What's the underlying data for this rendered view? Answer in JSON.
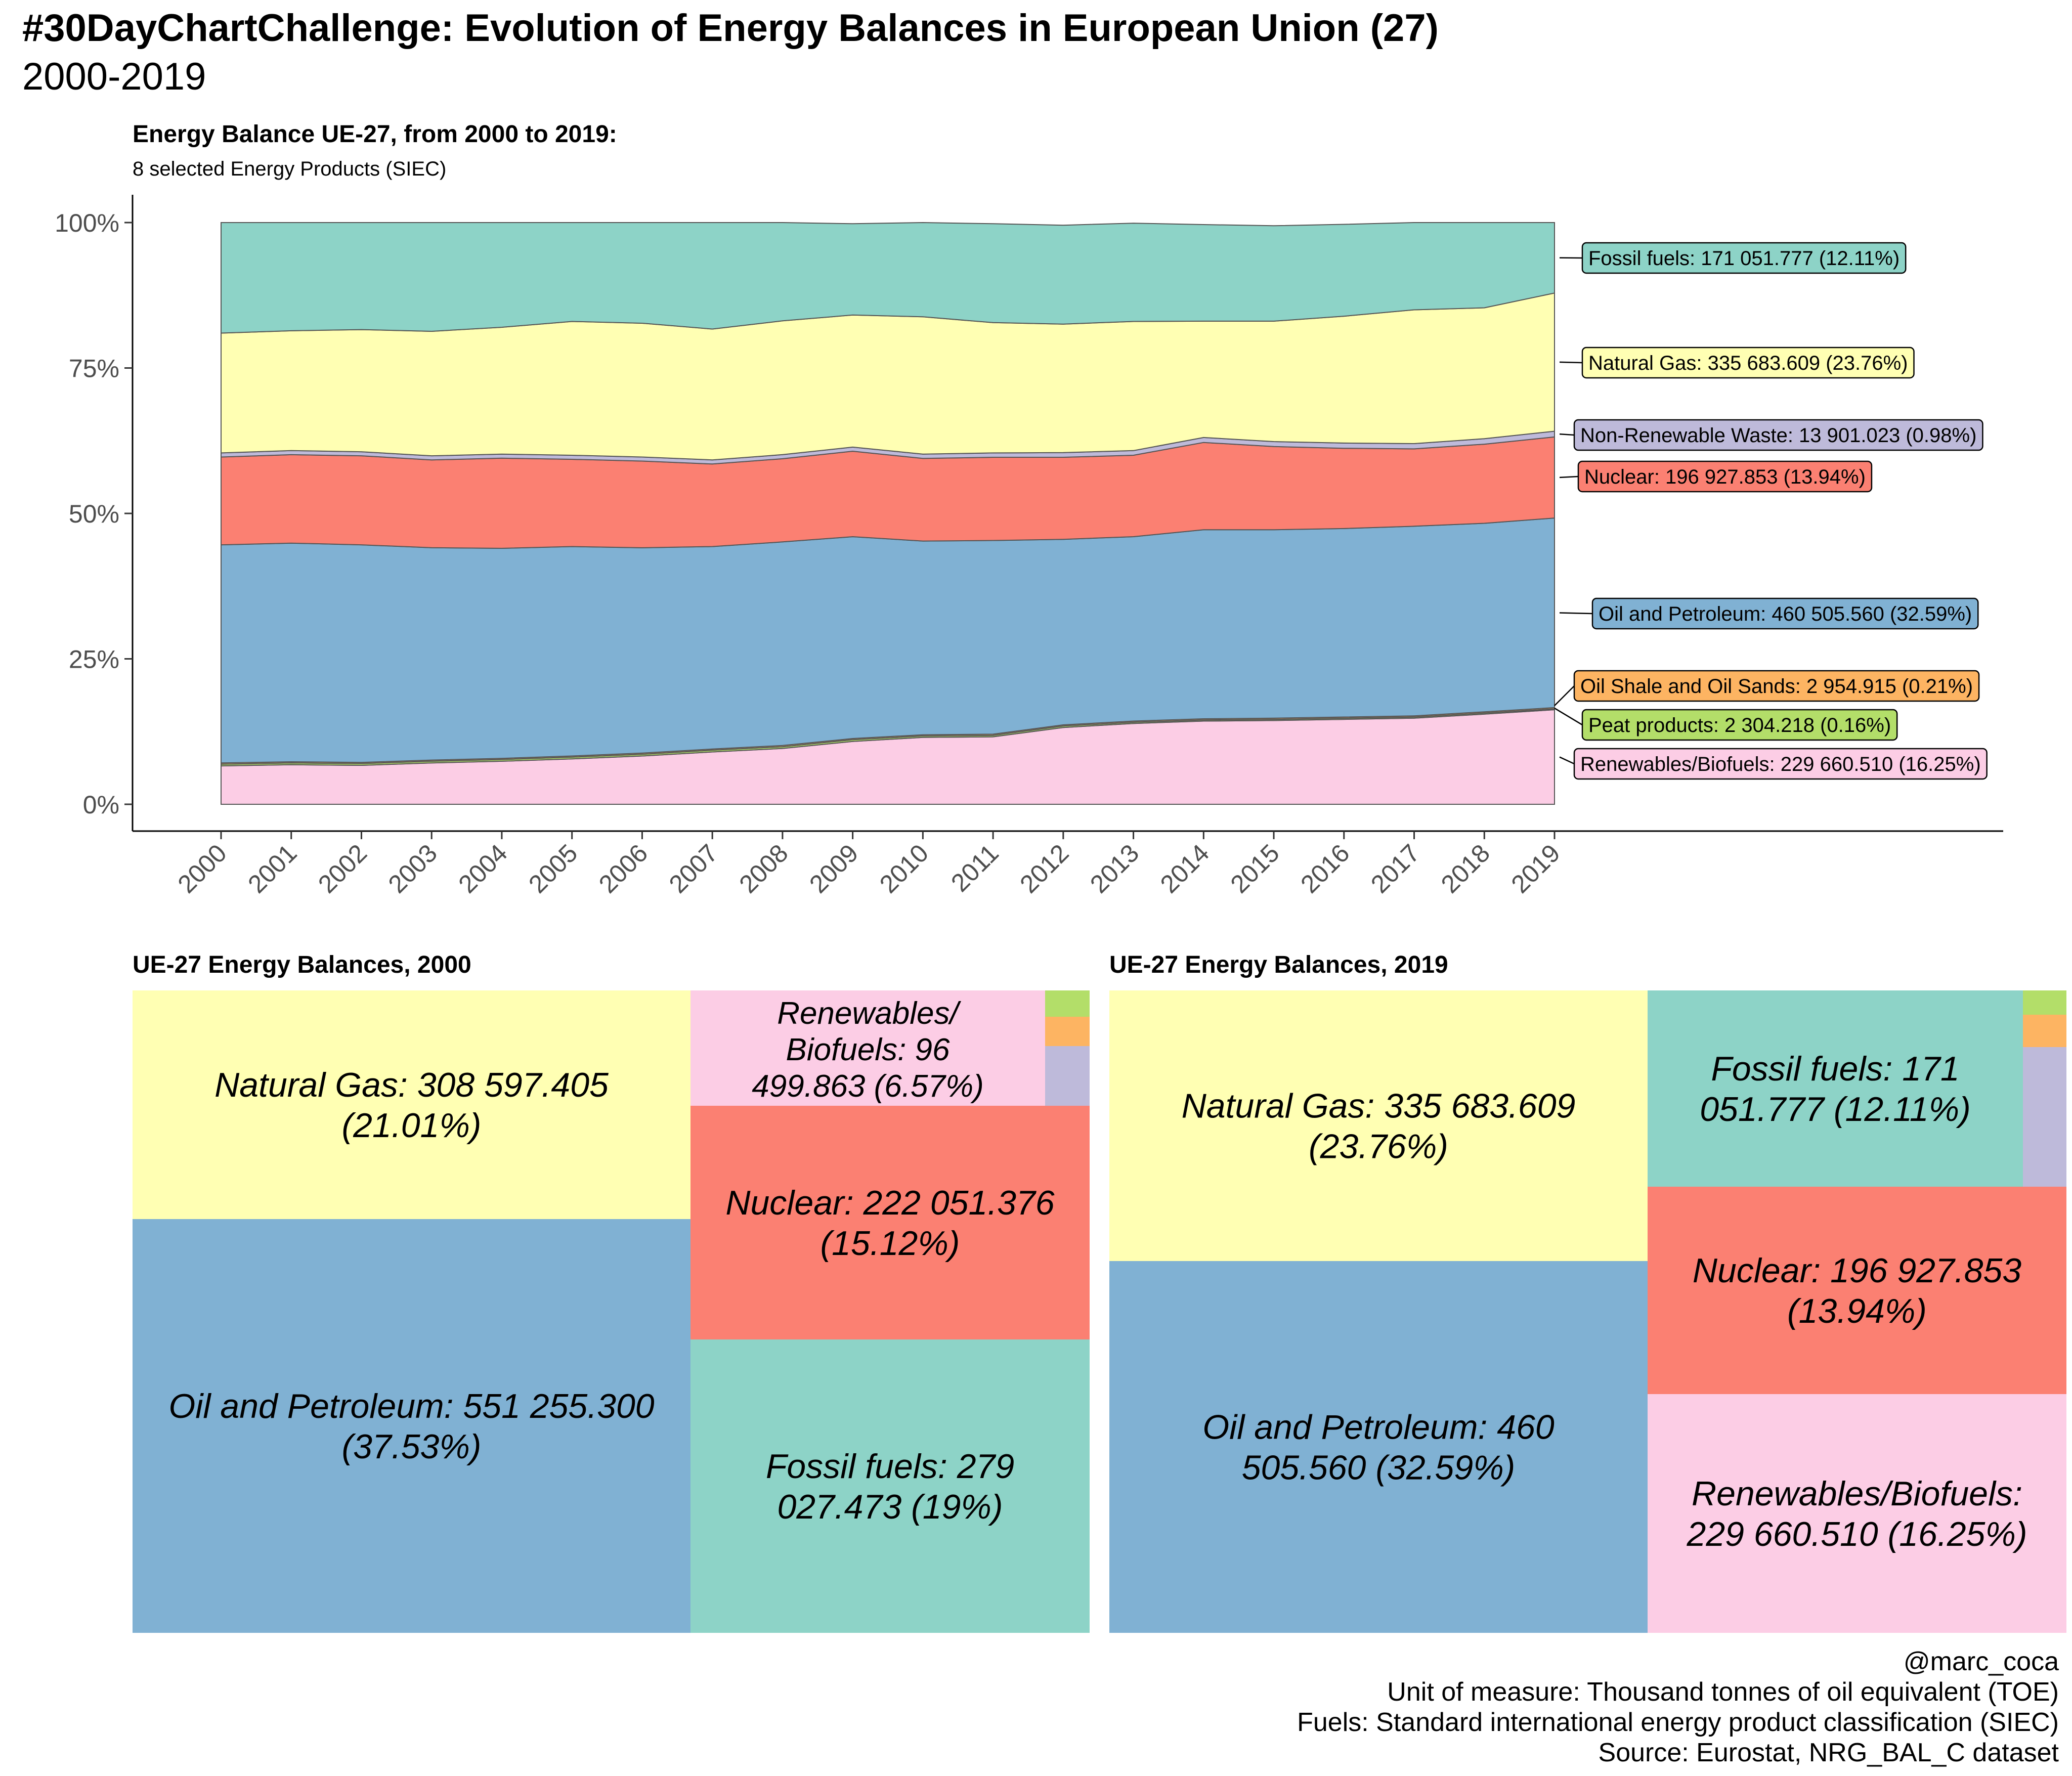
{
  "header": {
    "title": "#30DayChartChallenge: Evolution of Energy Balances in European Union (27)",
    "subtitle": "2000-2019"
  },
  "area_panel": {
    "title": "Energy Balance UE-27, from 2000 to 2019:",
    "subtitle": "8 selected Energy Products (SIEC)"
  },
  "treemap_2000": {
    "title": "UE-27 Energy Balances, 2000"
  },
  "treemap_2019": {
    "title": "UE-27 Energy Balances, 2019"
  },
  "caption": {
    "line1": "@marc_coca",
    "line2": "Unit of measure: Thousand tonnes of oil equivalent (TOE)",
    "line3": "Fuels: Standard international energy product classification (SIEC)",
    "line4": "Source: Eurostat, NRG_BAL_C dataset"
  },
  "colors": {
    "fossil": "#8DD3C7",
    "gas": "#FFFFB3",
    "waste": "#BEBADA",
    "nuclear": "#FB8072",
    "oil": "#80B1D3",
    "shale": "#FDB462",
    "peat": "#B3DE69",
    "renew": "#FCCDE5"
  },
  "chart_data": [
    {
      "type": "area",
      "stacked": "percent",
      "title": "Energy Balance UE-27, from 2000 to 2019:",
      "subtitle": "8 selected Energy Products (SIEC)",
      "x": [
        2000,
        2001,
        2002,
        2003,
        2004,
        2005,
        2006,
        2007,
        2008,
        2009,
        2010,
        2011,
        2012,
        2013,
        2014,
        2015,
        2016,
        2017,
        2018,
        2019
      ],
      "y_ticks": [
        "0%",
        "25%",
        "50%",
        "75%",
        "100%"
      ],
      "ylim": [
        0,
        100
      ],
      "series": [
        {
          "key": "renew",
          "color": "#FCCDE5",
          "values": [
            6.6,
            6.8,
            6.7,
            7.1,
            7.4,
            7.8,
            8.3,
            9.0,
            9.6,
            10.8,
            11.5,
            11.6,
            13.2,
            13.9,
            14.3,
            14.4,
            14.6,
            14.8,
            15.5,
            16.25
          ]
        },
        {
          "key": "peat",
          "color": "#B3DE69",
          "values": [
            0.3,
            0.3,
            0.3,
            0.3,
            0.3,
            0.3,
            0.3,
            0.3,
            0.3,
            0.3,
            0.25,
            0.25,
            0.25,
            0.2,
            0.2,
            0.2,
            0.2,
            0.2,
            0.2,
            0.16
          ]
        },
        {
          "key": "shale",
          "color": "#FDB462",
          "values": [
            0.2,
            0.2,
            0.2,
            0.2,
            0.2,
            0.2,
            0.2,
            0.2,
            0.2,
            0.2,
            0.2,
            0.2,
            0.2,
            0.2,
            0.2,
            0.2,
            0.2,
            0.2,
            0.2,
            0.21
          ]
        },
        {
          "key": "oil",
          "color": "#80B1D3",
          "values": [
            37.5,
            37.6,
            37.4,
            36.5,
            36.1,
            36.0,
            35.3,
            34.8,
            35.0,
            34.7,
            33.3,
            33.3,
            31.9,
            31.7,
            32.5,
            32.4,
            32.4,
            32.6,
            32.4,
            32.59
          ]
        },
        {
          "key": "nuclear",
          "color": "#FB8072",
          "values": [
            15.1,
            15.2,
            15.3,
            15.1,
            15.5,
            15.0,
            14.9,
            14.2,
            14.3,
            14.7,
            14.2,
            14.3,
            14.1,
            14.0,
            15.0,
            14.3,
            13.8,
            13.3,
            13.6,
            13.94
          ]
        },
        {
          "key": "waste",
          "color": "#BEBADA",
          "values": [
            0.7,
            0.7,
            0.7,
            0.7,
            0.7,
            0.7,
            0.7,
            0.7,
            0.7,
            0.7,
            0.75,
            0.75,
            0.8,
            0.8,
            0.85,
            0.85,
            0.9,
            0.9,
            0.95,
            0.98
          ]
        },
        {
          "key": "gas",
          "color": "#FFFFB3",
          "values": [
            20.6,
            20.6,
            21.0,
            21.4,
            21.8,
            23.0,
            23.0,
            22.5,
            23.0,
            22.7,
            23.6,
            22.4,
            22.1,
            22.2,
            20.0,
            20.7,
            21.8,
            23.0,
            22.5,
            23.76
          ]
        },
        {
          "key": "fossil",
          "color": "#8DD3C7",
          "values": [
            19.0,
            18.6,
            18.4,
            18.7,
            18.3,
            17.8,
            18.2,
            18.4,
            16.9,
            15.7,
            16.2,
            17.0,
            17.0,
            16.9,
            16.6,
            16.4,
            15.8,
            15.1,
            14.7,
            12.11
          ]
        }
      ],
      "labels": [
        {
          "key": "fossil",
          "text": "Fossil fuels: 171 051.777 (12.11%)"
        },
        {
          "key": "gas",
          "text": "Natural Gas: 335 683.609 (23.76%)"
        },
        {
          "key": "waste",
          "text": "Non-Renewable Waste:  13 901.023 (0.98%)"
        },
        {
          "key": "nuclear",
          "text": "Nuclear: 196 927.853 (13.94%)"
        },
        {
          "key": "oil",
          "text": "Oil and Petroleum: 460 505.560 (32.59%)"
        },
        {
          "key": "shale",
          "text": "Oil Shale and Oil Sands:   2 954.915 (0.21%)"
        },
        {
          "key": "peat",
          "text": "Peat products:   2 304.218 (0.16%)"
        },
        {
          "key": "renew",
          "text": "Renewables/Biofuels: 229 660.510 (16.25%)"
        }
      ]
    },
    {
      "type": "treemap",
      "title": "UE-27 Energy Balances, 2000",
      "items": [
        {
          "key": "gas",
          "value": 308597.405,
          "share": 21.01,
          "lines": [
            "Natural Gas: 308 597.405",
            "(21.01%)"
          ]
        },
        {
          "key": "oil",
          "value": 551255.3,
          "share": 37.53,
          "lines": [
            "Oil and Petroleum: 551 255.300",
            "(37.53%)"
          ]
        },
        {
          "key": "renew",
          "value": 96499.863,
          "share": 6.57,
          "lines": [
            "Renewables/",
            "Biofuels:  96",
            "499.863 (6.57%)"
          ]
        },
        {
          "key": "nuclear",
          "value": 222051.376,
          "share": 15.12,
          "lines": [
            "Nuclear: 222 051.376",
            "(15.12%)"
          ]
        },
        {
          "key": "fossil",
          "value": 279027.473,
          "share": 19.0,
          "lines": [
            "Fossil fuels: 279",
            "027.473 (19%)"
          ]
        },
        {
          "key": "peat",
          "lines": []
        },
        {
          "key": "shale",
          "lines": []
        },
        {
          "key": "waste",
          "lines": []
        }
      ]
    },
    {
      "type": "treemap",
      "title": "UE-27 Energy Balances, 2019",
      "items": [
        {
          "key": "gas",
          "value": 335683.609,
          "share": 23.76,
          "lines": [
            "Natural Gas: 335 683.609",
            "(23.76%)"
          ]
        },
        {
          "key": "oil",
          "value": 460505.56,
          "share": 32.59,
          "lines": [
            "Oil and Petroleum: 460",
            "505.560 (32.59%)"
          ]
        },
        {
          "key": "fossil",
          "value": 171051.777,
          "share": 12.11,
          "lines": [
            "Fossil fuels: 171",
            "051.777 (12.11%)"
          ]
        },
        {
          "key": "nuclear",
          "value": 196927.853,
          "share": 13.94,
          "lines": [
            "Nuclear: 196 927.853",
            "(13.94%)"
          ]
        },
        {
          "key": "renew",
          "value": 229660.51,
          "share": 16.25,
          "lines": [
            "Renewables/Biofuels:",
            "229 660.510 (16.25%)"
          ]
        },
        {
          "key": "peat",
          "value": 2304.218,
          "share": 0.16,
          "lines": []
        },
        {
          "key": "shale",
          "value": 2954.915,
          "share": 0.21,
          "lines": []
        },
        {
          "key": "waste",
          "value": 13901.023,
          "share": 0.98,
          "lines": []
        }
      ]
    }
  ]
}
